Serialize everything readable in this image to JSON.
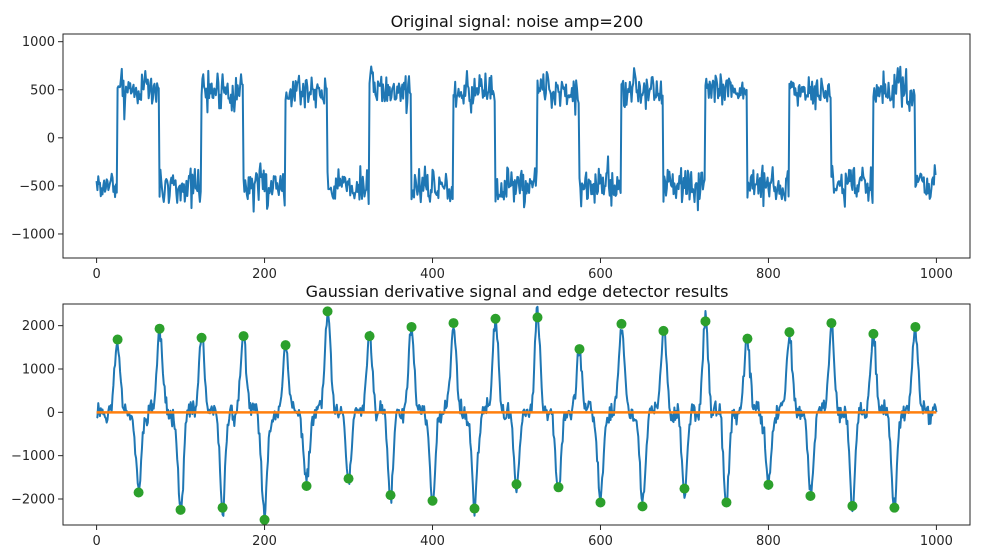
{
  "colors": {
    "signal": "#1f77b4",
    "baseline": "#ff7f0e",
    "edges": "#2ca02c",
    "frame": "#262626",
    "background": "#ffffff"
  },
  "chart_data": [
    {
      "type": "line",
      "title": "Original signal: noise amp=200",
      "xlabel": "",
      "ylabel": "",
      "xlim": [
        -40,
        1040
      ],
      "ylim": [
        -1250,
        1080
      ],
      "x_ticks": [
        0,
        200,
        400,
        600,
        800,
        1000
      ],
      "y_ticks": [
        -1000,
        -500,
        0,
        500,
        1000
      ],
      "x_tick_labels": [
        "0",
        "200",
        "400",
        "600",
        "800",
        "1000"
      ],
      "y_tick_labels": [
        "−1000",
        "−500",
        "0",
        "500",
        "1000"
      ],
      "grid": false,
      "signal_model": {
        "description": "square wave period 100 with additive noise",
        "period": 100,
        "high_start": 25,
        "high_end": 75,
        "levels": [
          -500,
          500
        ],
        "noise_amp": 200,
        "n_points": 1000
      },
      "series": [
        {
          "x_start": 0,
          "x_step": 1,
          "sampled_values": [
            -400,
            -430,
            -560,
            -480,
            -620,
            -450,
            -380,
            -520,
            -700,
            -600,
            -500,
            -470,
            -390,
            -540,
            -610,
            -480,
            -430,
            -560,
            -510,
            -450,
            -470,
            -600,
            -380,
            -420,
            -520,
            610,
            480,
            720,
            560,
            430,
            590,
            650,
            510,
            380,
            560,
            720,
            480,
            540,
            610,
            500,
            470,
            690,
            560,
            420,
            530,
            650,
            480,
            580,
            600,
            520,
            -430,
            -610,
            -530,
            -470,
            -700,
            -560,
            -420,
            -500,
            -620,
            -580,
            -450,
            -540,
            -640,
            -470,
            -520,
            -560,
            -430,
            -610,
            -500,
            -580,
            -460,
            -520,
            -610,
            -480,
            -540
          ]
        }
      ]
    },
    {
      "type": "line",
      "title": "Gaussian derivative signal and edge detector results",
      "xlabel": "",
      "ylabel": "",
      "xlim": [
        -40,
        1040
      ],
      "ylim": [
        -2600,
        2500
      ],
      "x_ticks": [
        0,
        200,
        400,
        600,
        800,
        1000
      ],
      "y_ticks": [
        -2000,
        -1000,
        0,
        1000,
        2000
      ],
      "x_tick_labels": [
        "0",
        "200",
        "400",
        "600",
        "800",
        "1000"
      ],
      "y_tick_labels": [
        "−2000",
        "−1000",
        "0",
        "1000",
        "2000"
      ],
      "grid": false,
      "baseline": {
        "name": "",
        "x": [
          0,
          1000
        ],
        "y": [
          0,
          0
        ]
      },
      "edges": {
        "x": [
          25,
          50,
          75,
          100,
          125,
          150,
          175,
          200,
          225,
          250,
          275,
          300,
          325,
          350,
          375,
          400,
          425,
          450,
          475,
          500,
          525,
          550,
          575,
          600,
          625,
          650,
          675,
          700,
          725,
          750,
          775,
          800,
          825,
          850,
          875,
          900,
          925,
          950,
          975
        ],
        "y": [
          1680,
          -1850,
          1930,
          -2250,
          1720,
          -2200,
          1760,
          -2480,
          1550,
          -1700,
          2330,
          -1530,
          1760,
          -1910,
          1970,
          -2040,
          2060,
          -2220,
          2160,
          -1660,
          2190,
          -1730,
          1460,
          -2080,
          2040,
          -2170,
          1880,
          -1760,
          2100,
          -2080,
          1700,
          -1670,
          1850,
          -1930,
          2060,
          -2160,
          1810,
          -2200,
          1970
        ]
      }
    }
  ]
}
